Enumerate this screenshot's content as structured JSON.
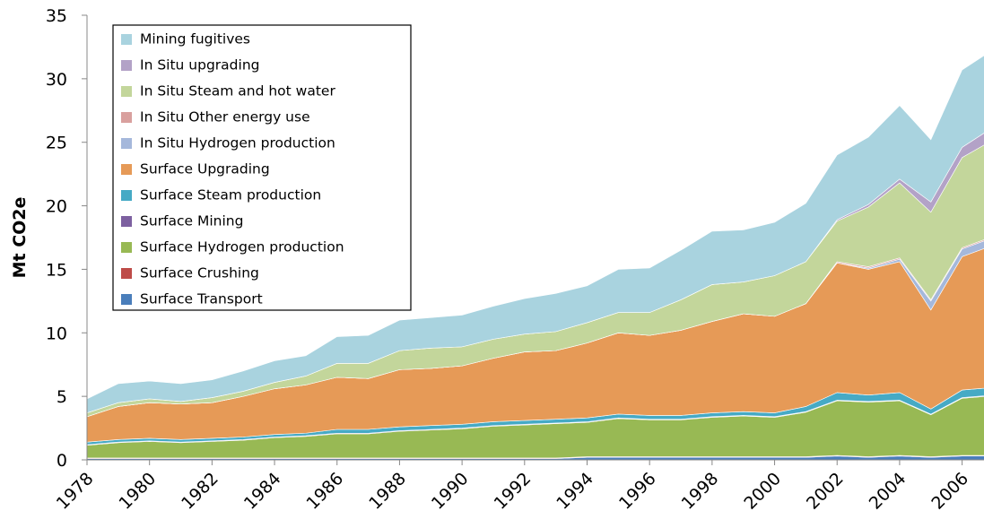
{
  "chart_data": {
    "type": "stacked_area",
    "y_label": "Mt CO2e",
    "x": [
      1978,
      1979,
      1980,
      1981,
      1982,
      1983,
      1984,
      1985,
      1986,
      1987,
      1988,
      1989,
      1990,
      1991,
      1992,
      1993,
      1994,
      1995,
      1996,
      1997,
      1998,
      1999,
      2000,
      2001,
      2002,
      2003,
      2004,
      2005,
      2006,
      2007
    ],
    "xlim": [
      1978,
      2006.7
    ],
    "xticks": [
      1978,
      1980,
      1982,
      1984,
      1986,
      1988,
      1990,
      1992,
      1994,
      1996,
      1998,
      2000,
      2002,
      2004,
      2006
    ],
    "ylim": [
      0,
      35
    ],
    "yticks": [
      0,
      5,
      10,
      15,
      20,
      25,
      30,
      35
    ],
    "grid": false,
    "legend": "upper left",
    "series": [
      {
        "name": "Surface Transport",
        "color": "#4a7ebb",
        "values": [
          0.1,
          0.1,
          0.1,
          0.1,
          0.1,
          0.1,
          0.1,
          0.1,
          0.1,
          0.1,
          0.1,
          0.1,
          0.1,
          0.1,
          0.1,
          0.1,
          0.2,
          0.2,
          0.2,
          0.2,
          0.2,
          0.2,
          0.2,
          0.2,
          0.3,
          0.2,
          0.3,
          0.2,
          0.3,
          0.3
        ]
      },
      {
        "name": "Surface Crushing",
        "color": "#be4b48",
        "values": [
          0.05,
          0.05,
          0.05,
          0.05,
          0.05,
          0.05,
          0.05,
          0.05,
          0.05,
          0.05,
          0.05,
          0.05,
          0.05,
          0.05,
          0.05,
          0.05,
          0.05,
          0.05,
          0.05,
          0.05,
          0.05,
          0.05,
          0.05,
          0.05,
          0.05,
          0.05,
          0.05,
          0.05,
          0.05,
          0.05
        ]
      },
      {
        "name": "Surface Hydrogen production",
        "color": "#98b954",
        "values": [
          1.0,
          1.2,
          1.3,
          1.2,
          1.3,
          1.4,
          1.6,
          1.7,
          1.9,
          1.9,
          2.1,
          2.2,
          2.3,
          2.5,
          2.6,
          2.7,
          2.7,
          3.0,
          2.9,
          2.9,
          3.1,
          3.2,
          3.1,
          3.5,
          4.3,
          4.3,
          4.3,
          3.3,
          4.5,
          4.7
        ]
      },
      {
        "name": "Surface Mining",
        "color": "#7d60a0",
        "values": [
          0.05,
          0.05,
          0.05,
          0.05,
          0.05,
          0.05,
          0.05,
          0.05,
          0.05,
          0.05,
          0.05,
          0.05,
          0.05,
          0.05,
          0.05,
          0.05,
          0.05,
          0.05,
          0.05,
          0.05,
          0.05,
          0.05,
          0.05,
          0.05,
          0.05,
          0.05,
          0.05,
          0.05,
          0.05,
          0.05
        ]
      },
      {
        "name": "Surface Steam production",
        "color": "#46aac5",
        "values": [
          0.2,
          0.2,
          0.2,
          0.2,
          0.2,
          0.2,
          0.2,
          0.2,
          0.3,
          0.3,
          0.3,
          0.3,
          0.3,
          0.3,
          0.3,
          0.3,
          0.3,
          0.3,
          0.3,
          0.3,
          0.3,
          0.3,
          0.3,
          0.4,
          0.6,
          0.5,
          0.6,
          0.4,
          0.6,
          0.6
        ]
      },
      {
        "name": "Surface Upgrading",
        "color": "#e69a57",
        "values": [
          2.0,
          2.6,
          2.8,
          2.8,
          2.8,
          3.2,
          3.6,
          3.8,
          4.1,
          4.0,
          4.5,
          4.5,
          4.6,
          5.0,
          5.4,
          5.4,
          5.9,
          6.4,
          6.3,
          6.7,
          7.2,
          7.7,
          7.6,
          8.1,
          10.2,
          9.9,
          10.3,
          7.8,
          10.5,
          11.2
        ]
      },
      {
        "name": "In Situ Hydrogen production",
        "color": "#a5b8db",
        "values": [
          0,
          0,
          0,
          0,
          0,
          0,
          0,
          0,
          0,
          0,
          0,
          0,
          0,
          0,
          0,
          0,
          0,
          0,
          0,
          0,
          0,
          0,
          0,
          0,
          0,
          0.1,
          0.2,
          0.7,
          0.6,
          0.6
        ]
      },
      {
        "name": "In Situ Other energy use",
        "color": "#d9a09e",
        "values": [
          0,
          0,
          0,
          0,
          0,
          0,
          0,
          0,
          0,
          0,
          0,
          0,
          0,
          0,
          0,
          0,
          0,
          0,
          0,
          0,
          0,
          0,
          0,
          0,
          0.1,
          0.1,
          0.1,
          0.1,
          0.1,
          0.1
        ]
      },
      {
        "name": "In Situ Steam and hot water",
        "color": "#c3d69b",
        "values": [
          0.3,
          0.3,
          0.3,
          0.2,
          0.4,
          0.4,
          0.5,
          0.7,
          1.1,
          1.2,
          1.5,
          1.6,
          1.5,
          1.5,
          1.4,
          1.5,
          1.6,
          1.6,
          1.8,
          2.4,
          2.9,
          2.5,
          3.2,
          3.3,
          3.2,
          4.7,
          5.9,
          6.9,
          7.1,
          7.6
        ]
      },
      {
        "name": "In Situ upgrading",
        "color": "#b3a2c7",
        "values": [
          0,
          0,
          0,
          0,
          0,
          0,
          0,
          0,
          0,
          0,
          0,
          0,
          0,
          0,
          0,
          0,
          0,
          0,
          0,
          0,
          0,
          0,
          0,
          0,
          0.1,
          0.2,
          0.3,
          0.8,
          0.8,
          1.0
        ]
      },
      {
        "name": "Mining fugitives",
        "color": "#a9d3df",
        "values": [
          1.1,
          1.5,
          1.4,
          1.4,
          1.4,
          1.6,
          1.7,
          1.6,
          2.1,
          2.2,
          2.4,
          2.4,
          2.5,
          2.6,
          2.8,
          3.0,
          2.9,
          3.4,
          3.5,
          3.9,
          4.2,
          4.1,
          4.2,
          4.6,
          5.1,
          5.3,
          5.8,
          4.9,
          6.1,
          6.1
        ]
      }
    ]
  }
}
